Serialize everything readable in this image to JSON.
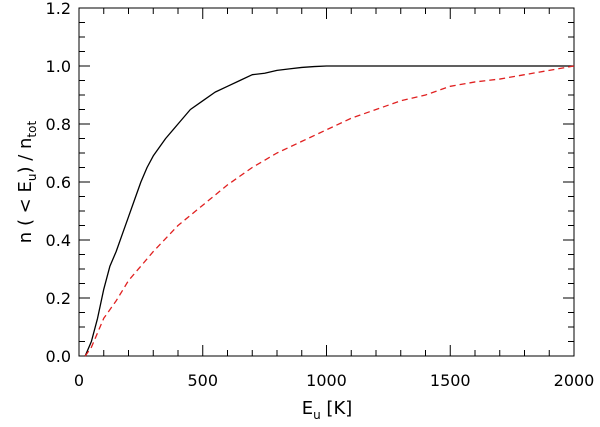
{
  "chart_data": {
    "type": "line",
    "title": "",
    "xlabel": {
      "main": "E",
      "sub": "u",
      "rest": " [K]"
    },
    "ylabel": {
      "part1": "n ( < E",
      "sub1": "u",
      "part2": ") / n",
      "sub2": "tot"
    },
    "xlim": [
      0,
      2000
    ],
    "ylim": [
      0,
      1.2
    ],
    "x_ticks": [
      0,
      500,
      1000,
      1500,
      2000
    ],
    "x_tick_labels": [
      "0",
      "500",
      "1000",
      "1500",
      "2000"
    ],
    "y_ticks": [
      0.0,
      0.2,
      0.4,
      0.6,
      0.8,
      1.0,
      1.2
    ],
    "y_tick_labels": [
      "0.0",
      "0.2",
      "0.4",
      "0.6",
      "0.8",
      "1.0",
      "1.2"
    ],
    "grid": false,
    "legend": "none",
    "series": [
      {
        "color": "#000000",
        "style": "solid",
        "x": [
          25,
          50,
          75,
          100,
          125,
          150,
          175,
          200,
          225,
          250,
          275,
          300,
          350,
          400,
          450,
          500,
          550,
          600,
          650,
          700,
          750,
          800,
          850,
          900,
          950,
          1000,
          1100,
          1200,
          1300,
          1400,
          1500,
          1600,
          1700,
          1800,
          1900,
          2000
        ],
        "y": [
          0.0,
          0.05,
          0.13,
          0.23,
          0.31,
          0.36,
          0.42,
          0.48,
          0.54,
          0.6,
          0.65,
          0.69,
          0.75,
          0.8,
          0.85,
          0.88,
          0.91,
          0.93,
          0.95,
          0.97,
          0.975,
          0.985,
          0.99,
          0.995,
          0.998,
          1.0,
          1.0,
          1.0,
          1.0,
          1.0,
          1.0,
          1.0,
          1.0,
          1.0,
          1.0,
          1.0
        ]
      },
      {
        "color": "#e02020",
        "style": "dashed",
        "x": [
          25,
          50,
          75,
          100,
          150,
          200,
          250,
          300,
          400,
          500,
          600,
          700,
          800,
          900,
          1000,
          1100,
          1200,
          1300,
          1400,
          1500,
          1600,
          1700,
          1800,
          1900,
          2000
        ],
        "y": [
          0.0,
          0.03,
          0.08,
          0.13,
          0.19,
          0.26,
          0.31,
          0.36,
          0.45,
          0.52,
          0.59,
          0.65,
          0.7,
          0.74,
          0.78,
          0.82,
          0.85,
          0.88,
          0.9,
          0.93,
          0.945,
          0.955,
          0.97,
          0.985,
          1.0
        ]
      }
    ]
  }
}
